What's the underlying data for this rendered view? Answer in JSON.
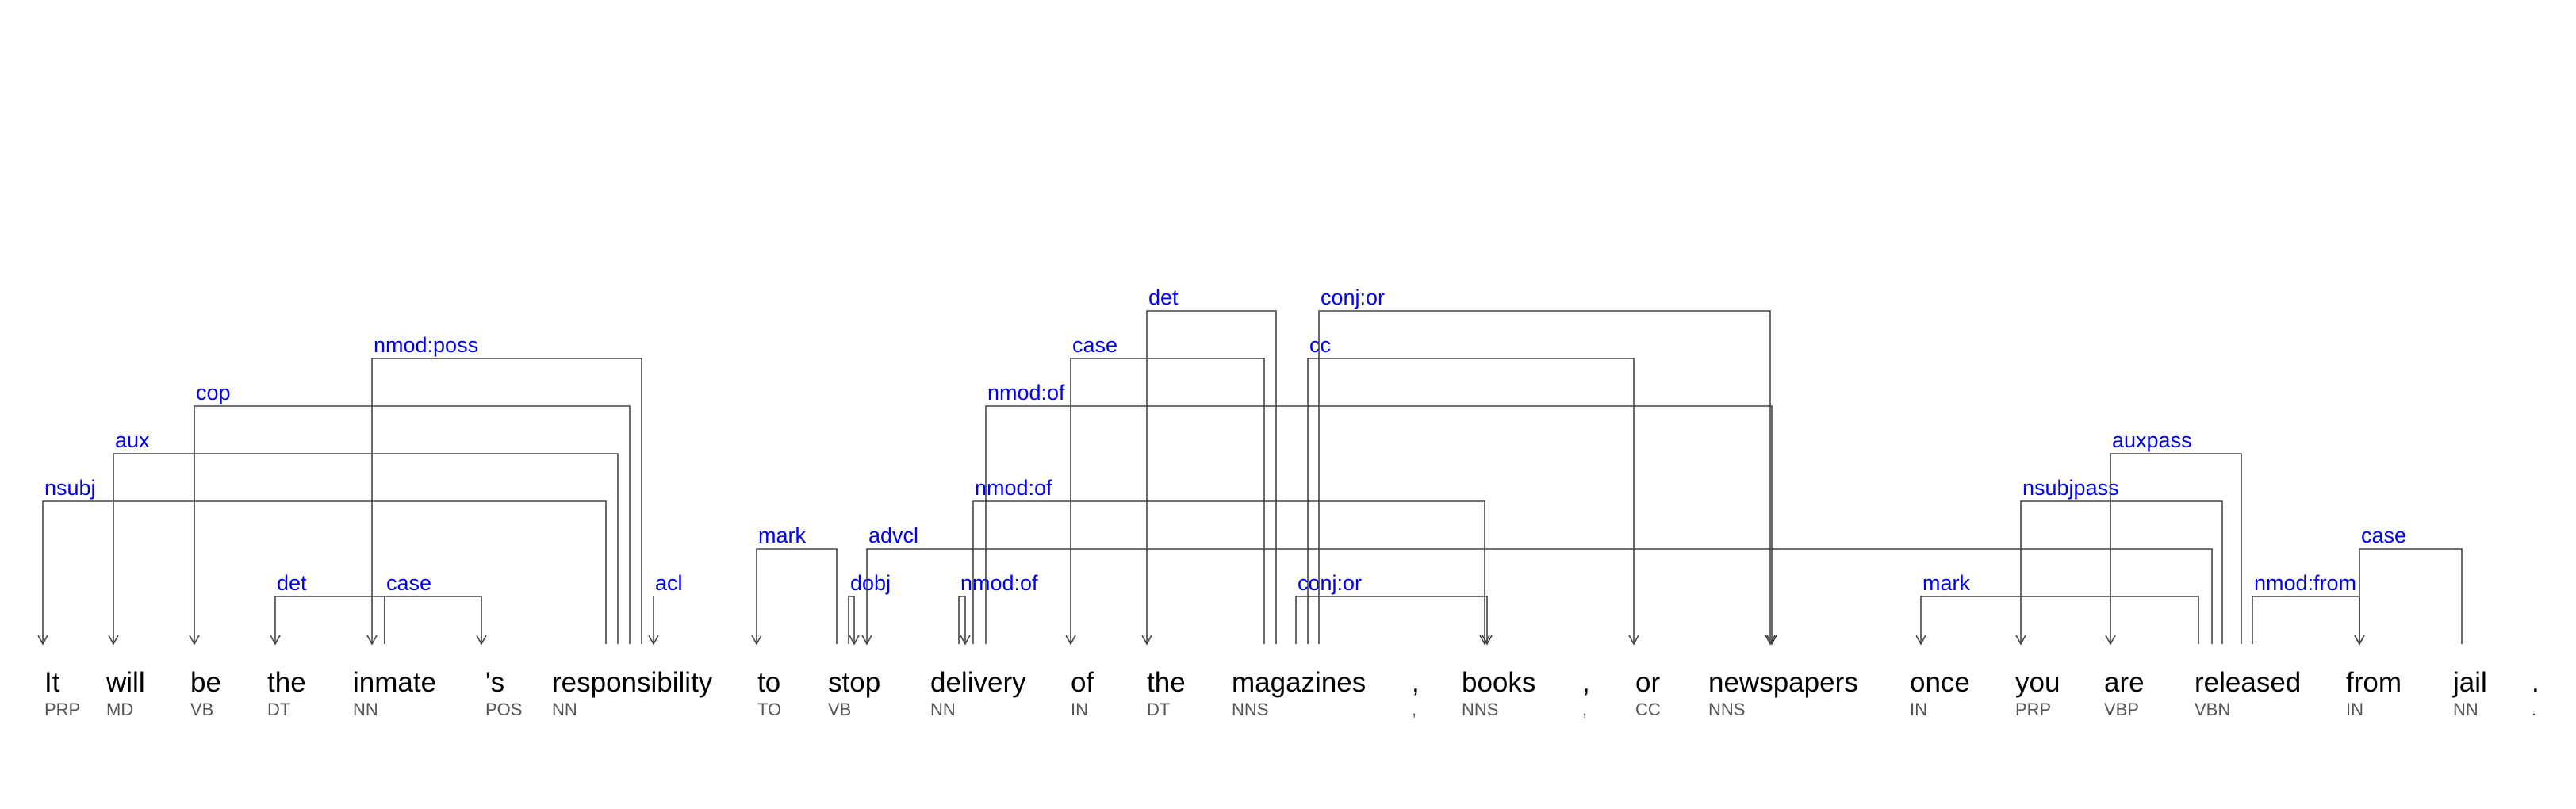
{
  "tokens": [
    {
      "word": "It",
      "pos": "PRP"
    },
    {
      "word": "will",
      "pos": "MD"
    },
    {
      "word": "be",
      "pos": "VB"
    },
    {
      "word": "the",
      "pos": "DT"
    },
    {
      "word": "inmate",
      "pos": "NN"
    },
    {
      "word": "'s",
      "pos": "POS"
    },
    {
      "word": "responsibility",
      "pos": "NN"
    },
    {
      "word": "to",
      "pos": "TO"
    },
    {
      "word": "stop",
      "pos": "VB"
    },
    {
      "word": "delivery",
      "pos": "NN"
    },
    {
      "word": "of",
      "pos": "IN"
    },
    {
      "word": "the",
      "pos": "DT"
    },
    {
      "word": "magazines",
      "pos": "NNS"
    },
    {
      "word": ",",
      "pos": ","
    },
    {
      "word": "books",
      "pos": "NNS"
    },
    {
      "word": ",",
      "pos": ","
    },
    {
      "word": "or",
      "pos": "CC"
    },
    {
      "word": "newspapers",
      "pos": "NNS"
    },
    {
      "word": "once",
      "pos": "IN"
    },
    {
      "word": "you",
      "pos": "PRP"
    },
    {
      "word": "are",
      "pos": "VBP"
    },
    {
      "word": "released",
      "pos": "VBN"
    },
    {
      "word": "from",
      "pos": "IN"
    },
    {
      "word": "jail",
      "pos": "NN"
    },
    {
      "word": ".",
      "pos": "."
    }
  ],
  "dependencies": [
    {
      "label": "nsubj",
      "head": 6,
      "dep": 0
    },
    {
      "label": "aux",
      "head": 6,
      "dep": 1
    },
    {
      "label": "cop",
      "head": 6,
      "dep": 2
    },
    {
      "label": "det",
      "head": 4,
      "dep": 3
    },
    {
      "label": "nmod:poss",
      "head": 6,
      "dep": 4
    },
    {
      "label": "case",
      "head": 4,
      "dep": 5
    },
    {
      "label": "acl",
      "head": 6,
      "dep": 8
    },
    {
      "label": "mark",
      "head": 8,
      "dep": 7
    },
    {
      "label": "dobj",
      "head": 8,
      "dep": 9
    },
    {
      "label": "advcl",
      "head": 8,
      "dep": 21
    },
    {
      "label": "nmod:of",
      "head": 9,
      "dep": 12
    },
    {
      "label": "nmod:of",
      "head": 9,
      "dep": 14
    },
    {
      "label": "nmod:of",
      "head": 9,
      "dep": 17
    },
    {
      "label": "case",
      "head": 12,
      "dep": 10
    },
    {
      "label": "det",
      "head": 12,
      "dep": 11
    },
    {
      "label": "conj:or",
      "head": 12,
      "dep": 14
    },
    {
      "label": "cc",
      "head": 12,
      "dep": 16
    },
    {
      "label": "conj:or",
      "head": 12,
      "dep": 17
    },
    {
      "label": "mark",
      "head": 21,
      "dep": 18
    },
    {
      "label": "nsubjpass",
      "head": 21,
      "dep": 19
    },
    {
      "label": "auxpass",
      "head": 21,
      "dep": 20
    },
    {
      "label": "nmod:from",
      "head": 21,
      "dep": 23
    },
    {
      "label": "case",
      "head": 23,
      "dep": 22
    }
  ]
}
